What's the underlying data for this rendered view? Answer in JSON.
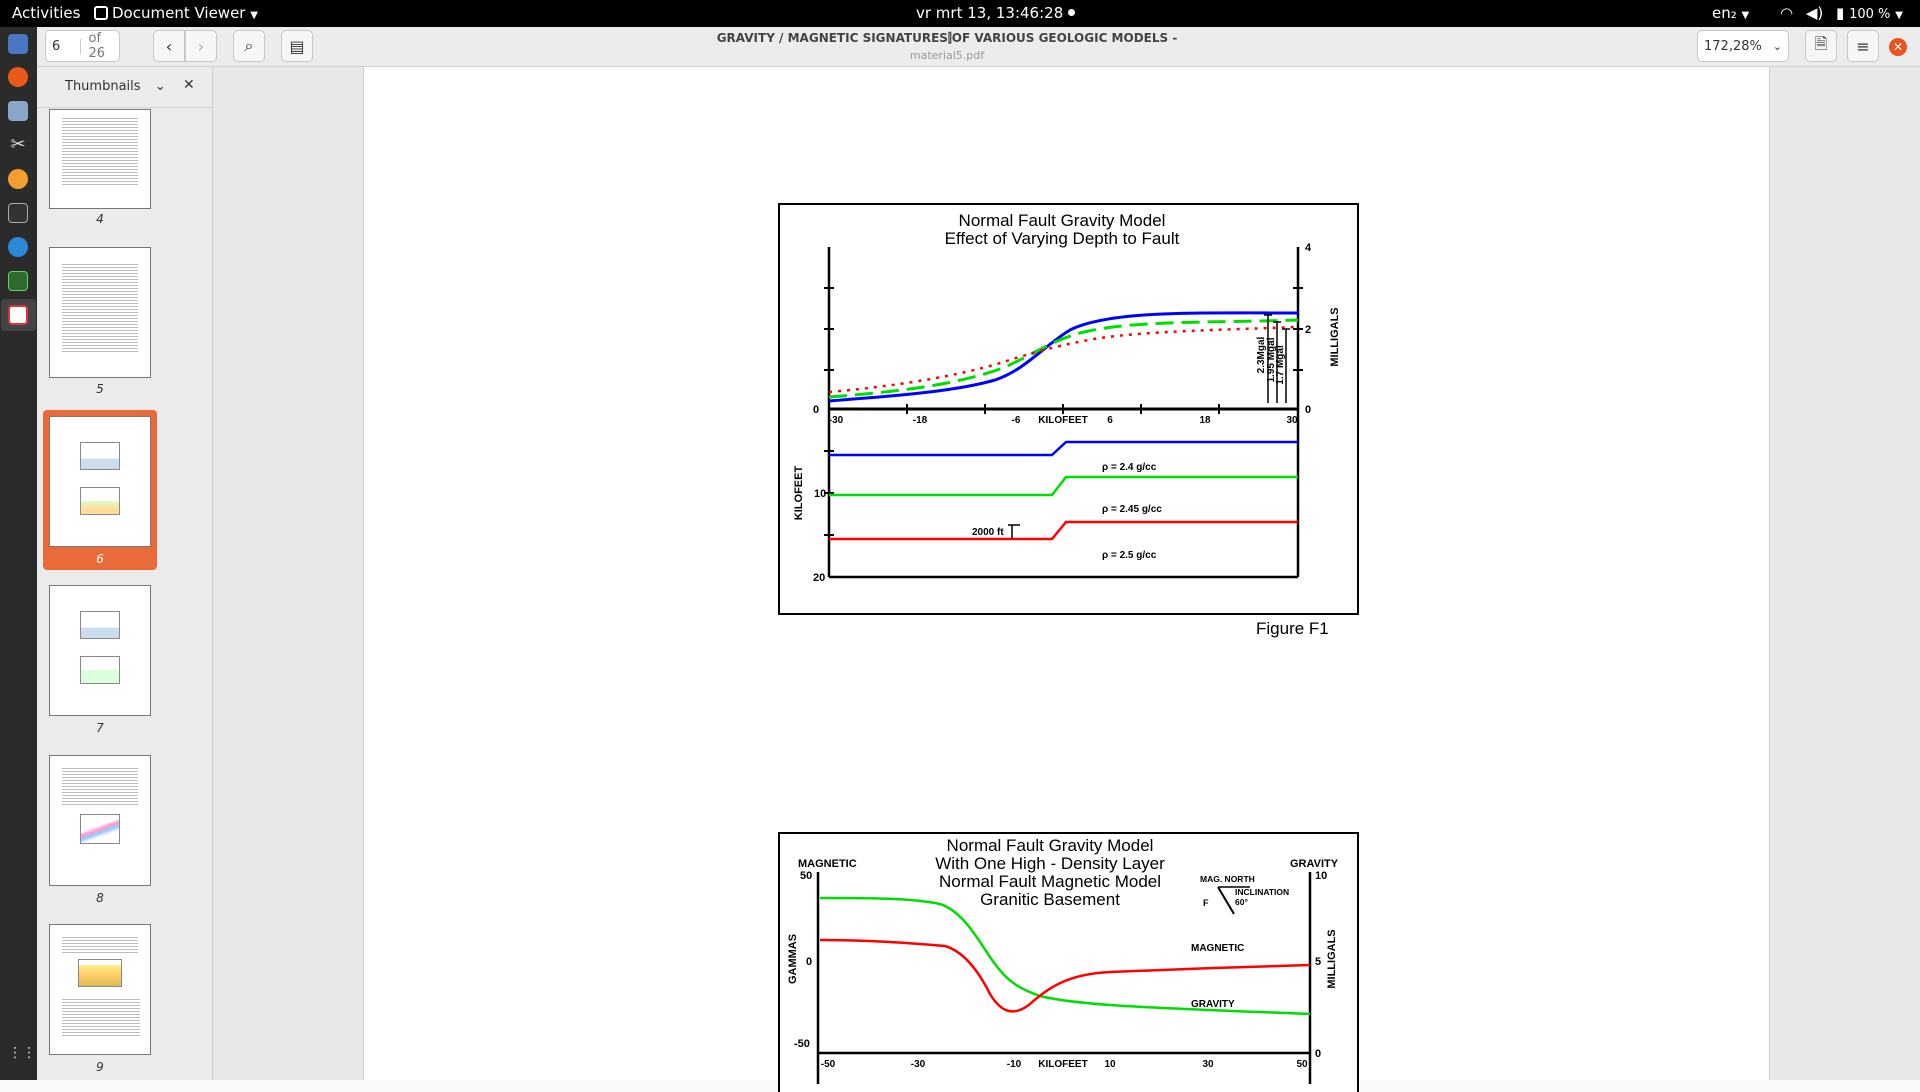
{
  "topbar": {
    "activities": "Activities",
    "app_name": "Document Viewer",
    "clock": "vr mrt 13, 13:46:28",
    "lang": "en₂",
    "battery": "100 %"
  },
  "headerbar": {
    "page_input": "6",
    "page_total": "of 26",
    "title": "GRAVITY / MAGNETIC SIGNATURES⫿OF VARIOUS GEOLOGIC MODELS -",
    "subtitle": "material5.pdf",
    "zoom": "172,28%"
  },
  "sidebar": {
    "title": "Thumbnails",
    "thumbnails": [
      {
        "label": "4"
      },
      {
        "label": "5"
      },
      {
        "label": "6",
        "selected": true
      },
      {
        "label": "7"
      },
      {
        "label": "8"
      },
      {
        "label": "9"
      }
    ]
  },
  "figure1": {
    "title_line1": "Normal Fault Gravity Model",
    "title_line2": "Effect of Varying Depth to Fault",
    "caption": "Figure F1",
    "right_axis_label": "MILLIGALS",
    "left_axis_label": "KILOFEET",
    "x_axis_label": "KILOFEET",
    "x_ticks": [
      "-30",
      "-18",
      "-6",
      "6",
      "18",
      "30"
    ],
    "right_ticks": [
      "4",
      "2",
      "0"
    ],
    "left_ticks": [
      "0",
      "10",
      "20"
    ],
    "annotations": [
      "2.3Mgal",
      "1.95 Mgal",
      "1.7 Mgal",
      "2000 ft"
    ],
    "layers": [
      {
        "label": "ρ = 2.4 g/cc",
        "color": "#0000ff"
      },
      {
        "label": "ρ = 2.45 g/cc",
        "color": "#00dd00"
      },
      {
        "label": "ρ = 2.5 g/cc",
        "color": "#ff0000"
      }
    ]
  },
  "figure2": {
    "title_line1": "Normal Fault Gravity Model",
    "title_line2": "With One High - Density Layer",
    "title_line3": "Normal Fault Magnetic Model",
    "title_line4": "Granitic Basement",
    "left_label": "MAGNETIC",
    "right_label": "GRAVITY",
    "left_axis_label": "GAMMAS",
    "right_axis_label": "MILLIGALS",
    "left_ticks": [
      "50",
      "0",
      "-50"
    ],
    "right_ticks": [
      "10",
      "5",
      "0"
    ],
    "x_ticks": [
      "-50",
      "-30",
      "-10",
      "10",
      "30",
      "50"
    ],
    "x_axis_label": "KILOFEET",
    "mag_north": "MAG. NORTH",
    "inclination": "INCLINATION",
    "inclination_value": "60°",
    "f_label": "F",
    "curve_magnetic": "MAGNETIC",
    "curve_gravity": "GRAVITY"
  }
}
